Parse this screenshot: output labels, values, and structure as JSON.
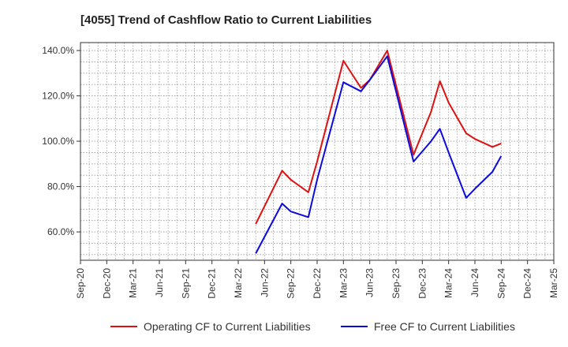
{
  "chart_data": {
    "type": "line",
    "title": "[4055]  Trend of Cashflow Ratio to Current Liabilities",
    "xlabel": "",
    "ylabel": "",
    "ylim": [
      47.5,
      143.5
    ],
    "y_ticks": [
      60,
      80,
      100,
      120,
      140
    ],
    "y_tick_labels": [
      "60.0%",
      "80.0%",
      "100.0%",
      "120.0%",
      "140.0%"
    ],
    "x_tick_labels": [
      "Sep-20",
      "Dec-20",
      "Mar-21",
      "Jun-21",
      "Sep-21",
      "Dec-21",
      "Mar-22",
      "Jun-22",
      "Sep-22",
      "Dec-22",
      "Mar-23",
      "Jun-23",
      "Sep-23",
      "Dec-23",
      "Mar-24",
      "Jun-24",
      "Sep-24",
      "Dec-24",
      "Mar-25"
    ],
    "x": [
      "May-22",
      "Aug-22",
      "Sep-22",
      "Nov-22",
      "Dec-22",
      "Mar-23",
      "May-23",
      "Jun-23",
      "Aug-23",
      "Nov-23",
      "Jan-24",
      "Feb-24",
      "Mar-24",
      "May-24",
      "Jun-24",
      "Aug-24",
      "Sep-24"
    ],
    "series": [
      {
        "name": "Operating CF to Current Liabilities",
        "color": "#dd1111",
        "values": [
          63.5,
          87.0,
          83.0,
          77.5,
          91.0,
          135.5,
          123.5,
          127.0,
          140.0,
          94.0,
          113.0,
          126.5,
          117.0,
          103.5,
          101.0,
          97.5,
          99.0
        ]
      },
      {
        "name": "Free CF to Current Liabilities",
        "color": "#0b0bdd",
        "values": [
          50.5,
          72.5,
          69.0,
          66.5,
          83.0,
          126.0,
          122.0,
          127.0,
          137.5,
          91.0,
          100.0,
          105.5,
          95.0,
          75.0,
          79.0,
          86.5,
          93.5
        ]
      }
    ],
    "grid": true,
    "legend_position": "bottom"
  }
}
